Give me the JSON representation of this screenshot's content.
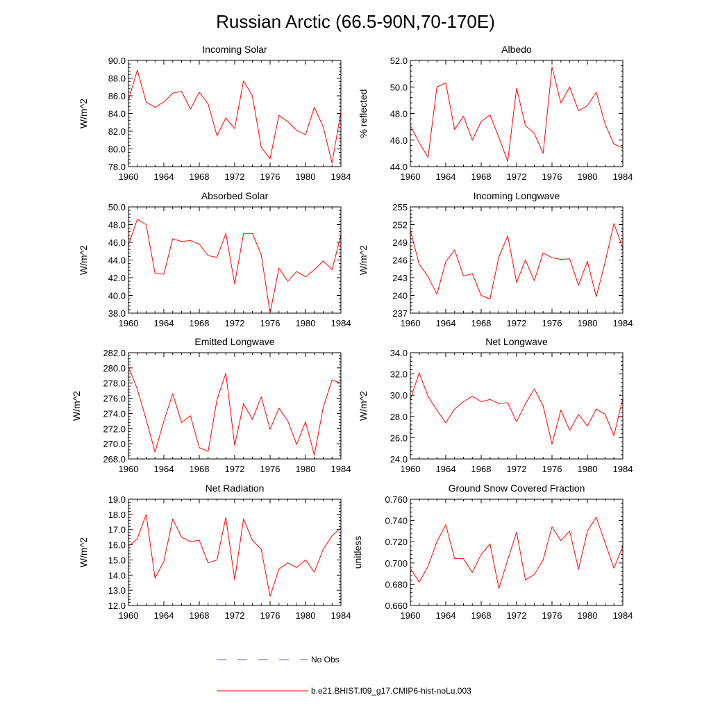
{
  "figure": {
    "title": "Russian Arctic (66.5-90N,70-170E)"
  },
  "legend": {
    "items": [
      {
        "label": "No Obs",
        "color": "#5a5adc",
        "dash": true
      },
      {
        "label": "b.e21.BHIST.f09_g17.CMIP6-hist-noLu.003",
        "color": "#ff0000",
        "dash": false
      }
    ]
  },
  "chart_data": [
    {
      "type": "line",
      "title": "Incoming Solar",
      "ylabel": "W/m^2",
      "xlim": [
        1960,
        1984
      ],
      "ylim": [
        78.0,
        90.0
      ],
      "xticks": [
        1960,
        1964,
        1968,
        1972,
        1976,
        1980,
        1984
      ],
      "xtick_labels": [
        "1960",
        "1964",
        "1968",
        "1972",
        "1976",
        "1980",
        "1984"
      ],
      "yticks": [
        78,
        80,
        82,
        84,
        86,
        88,
        90
      ],
      "ytick_labels": [
        "78.0",
        "80.0",
        "82.0",
        "84.0",
        "86.0",
        "88.0",
        "90.0"
      ],
      "grid": false,
      "x": [
        1960,
        1961,
        1962,
        1963,
        1964,
        1965,
        1966,
        1967,
        1968,
        1969,
        1970,
        1971,
        1972,
        1973,
        1974,
        1975,
        1976,
        1977,
        1978,
        1979,
        1980,
        1981,
        1982,
        1983,
        1984
      ],
      "series": [
        {
          "color": "#ff0000",
          "values": [
            85.5,
            88.9,
            85.3,
            84.7,
            85.3,
            86.3,
            86.5,
            84.5,
            86.4,
            85.1,
            81.5,
            83.5,
            82.3,
            87.7,
            86.0,
            80.2,
            78.9,
            83.8,
            83.1,
            82.1,
            81.6,
            84.7,
            82.5,
            78.4,
            84.2
          ]
        }
      ]
    },
    {
      "type": "line",
      "title": "Albedo",
      "ylabel": "% reflected",
      "xlim": [
        1960,
        1984
      ],
      "ylim": [
        44.0,
        52.0
      ],
      "xticks": [
        1960,
        1964,
        1968,
        1972,
        1976,
        1980,
        1984
      ],
      "xtick_labels": [
        "1960",
        "1964",
        "1968",
        "1972",
        "1976",
        "1980",
        "1984"
      ],
      "yticks": [
        44,
        46,
        48,
        50,
        52
      ],
      "ytick_labels": [
        "44.0",
        "46.0",
        "48.0",
        "50.0",
        "52.0"
      ],
      "grid": false,
      "x": [
        1960,
        1961,
        1962,
        1963,
        1964,
        1965,
        1966,
        1967,
        1968,
        1969,
        1970,
        1971,
        1972,
        1973,
        1974,
        1975,
        1976,
        1977,
        1978,
        1979,
        1980,
        1981,
        1982,
        1983,
        1984
      ],
      "series": [
        {
          "color": "#ff0000",
          "values": [
            47.1,
            45.8,
            44.7,
            50.0,
            50.3,
            46.8,
            47.8,
            46.0,
            47.4,
            47.9,
            46.2,
            44.4,
            49.9,
            47.1,
            46.5,
            45.0,
            51.5,
            48.8,
            50.0,
            48.2,
            48.6,
            49.6,
            47.2,
            45.7,
            45.4
          ]
        }
      ]
    },
    {
      "type": "line",
      "title": "Absorbed Solar",
      "ylabel": "W/m^2",
      "xlim": [
        1960,
        1984
      ],
      "ylim": [
        38.0,
        50.0
      ],
      "xticks": [
        1960,
        1964,
        1968,
        1972,
        1976,
        1980,
        1984
      ],
      "xtick_labels": [
        "1960",
        "1964",
        "1968",
        "1972",
        "1976",
        "1980",
        "1984"
      ],
      "yticks": [
        38,
        40,
        42,
        44,
        46,
        48,
        50
      ],
      "ytick_labels": [
        "38.0",
        "40.0",
        "42.0",
        "44.0",
        "46.0",
        "48.0",
        "50.0"
      ],
      "grid": false,
      "x": [
        1960,
        1961,
        1962,
        1963,
        1964,
        1965,
        1966,
        1967,
        1968,
        1969,
        1970,
        1971,
        1972,
        1973,
        1974,
        1975,
        1976,
        1977,
        1978,
        1979,
        1980,
        1981,
        1982,
        1983,
        1984
      ],
      "series": [
        {
          "color": "#ff0000",
          "values": [
            45.7,
            48.6,
            48.0,
            42.5,
            42.4,
            46.4,
            46.1,
            46.2,
            45.8,
            44.5,
            44.3,
            47.0,
            41.3,
            47.0,
            47.0,
            44.6,
            38.0,
            43.1,
            41.6,
            42.7,
            42.1,
            42.9,
            43.9,
            42.9,
            46.8
          ]
        }
      ]
    },
    {
      "type": "line",
      "title": "Incoming Longwave",
      "ylabel": "W/m^2",
      "xlim": [
        1960,
        1984
      ],
      "ylim": [
        237,
        255
      ],
      "xticks": [
        1960,
        1964,
        1968,
        1972,
        1976,
        1980,
        1984
      ],
      "xtick_labels": [
        "1960",
        "1964",
        "1968",
        "1972",
        "1976",
        "1980",
        "1984"
      ],
      "yticks": [
        237,
        240,
        243,
        246,
        249,
        252,
        255
      ],
      "ytick_labels": [
        "237",
        "240",
        "243",
        "246",
        "249",
        "252",
        "255"
      ],
      "grid": false,
      "x": [
        1960,
        1961,
        1962,
        1963,
        1964,
        1965,
        1966,
        1967,
        1968,
        1969,
        1970,
        1971,
        1972,
        1973,
        1974,
        1975,
        1976,
        1977,
        1978,
        1979,
        1980,
        1981,
        1982,
        1983,
        1984
      ],
      "series": [
        {
          "color": "#ff0000",
          "values": [
            251.0,
            245.3,
            243.2,
            240.2,
            245.7,
            247.7,
            243.3,
            243.7,
            240.0,
            239.4,
            246.5,
            250.1,
            242.2,
            246.0,
            242.5,
            247.2,
            246.4,
            246.1,
            246.2,
            241.7,
            245.8,
            239.8,
            245.6,
            252.2,
            248.0
          ]
        }
      ]
    },
    {
      "type": "line",
      "title": "Emitted Longwave",
      "ylabel": "W/m^2",
      "xlim": [
        1960,
        1984
      ],
      "ylim": [
        268.0,
        282.0
      ],
      "xticks": [
        1960,
        1964,
        1968,
        1972,
        1976,
        1980,
        1984
      ],
      "xtick_labels": [
        "1960",
        "1964",
        "1968",
        "1972",
        "1976",
        "1980",
        "1984"
      ],
      "yticks": [
        268,
        270,
        272,
        274,
        276,
        278,
        280,
        282
      ],
      "ytick_labels": [
        "268.0",
        "270.0",
        "272.0",
        "274.0",
        "276.0",
        "278.0",
        "280.0",
        "282.0"
      ],
      "grid": false,
      "x": [
        1960,
        1961,
        1962,
        1963,
        1964,
        1965,
        1966,
        1967,
        1968,
        1969,
        1970,
        1971,
        1972,
        1973,
        1974,
        1975,
        1976,
        1977,
        1978,
        1979,
        1980,
        1981,
        1982,
        1983,
        1984
      ],
      "series": [
        {
          "color": "#ff0000",
          "values": [
            280.2,
            277.2,
            273.2,
            268.9,
            273.0,
            276.6,
            272.8,
            273.7,
            269.5,
            269.0,
            275.8,
            279.3,
            269.8,
            275.3,
            273.2,
            276.2,
            271.9,
            274.7,
            273.0,
            269.9,
            272.9,
            268.5,
            274.8,
            278.4,
            278.0
          ]
        }
      ]
    },
    {
      "type": "line",
      "title": "Net Longwave",
      "ylabel": "W/m^2",
      "xlim": [
        1960,
        1984
      ],
      "ylim": [
        24.0,
        34.0
      ],
      "xticks": [
        1960,
        1964,
        1968,
        1972,
        1976,
        1980,
        1984
      ],
      "xtick_labels": [
        "1960",
        "1964",
        "1968",
        "1972",
        "1976",
        "1980",
        "1984"
      ],
      "yticks": [
        24,
        26,
        28,
        30,
        32,
        34
      ],
      "ytick_labels": [
        "24.0",
        "26.0",
        "28.0",
        "30.0",
        "32.0",
        "34.0"
      ],
      "grid": false,
      "x": [
        1960,
        1961,
        1962,
        1963,
        1964,
        1965,
        1966,
        1967,
        1968,
        1969,
        1970,
        1971,
        1972,
        1973,
        1974,
        1975,
        1976,
        1977,
        1978,
        1979,
        1980,
        1981,
        1982,
        1983,
        1984
      ],
      "series": [
        {
          "color": "#ff0000",
          "values": [
            29.6,
            32.1,
            29.9,
            28.6,
            27.4,
            28.7,
            29.4,
            29.9,
            29.4,
            29.6,
            29.2,
            29.3,
            27.5,
            29.2,
            30.6,
            29.0,
            25.4,
            28.6,
            26.7,
            28.2,
            27.1,
            28.7,
            28.2,
            26.2,
            29.7
          ]
        }
      ]
    },
    {
      "type": "line",
      "title": "Net Radiation",
      "ylabel": "W/m^2",
      "xlim": [
        1960,
        1984
      ],
      "ylim": [
        12.0,
        19.0
      ],
      "xticks": [
        1960,
        1964,
        1968,
        1972,
        1976,
        1980,
        1984
      ],
      "xtick_labels": [
        "1960",
        "1964",
        "1968",
        "1972",
        "1976",
        "1980",
        "1984"
      ],
      "yticks": [
        12,
        13,
        14,
        15,
        16,
        17,
        18,
        19
      ],
      "ytick_labels": [
        "12.0",
        "13.0",
        "14.0",
        "15.0",
        "16.0",
        "17.0",
        "18.0",
        "19.0"
      ],
      "grid": false,
      "x": [
        1960,
        1961,
        1962,
        1963,
        1964,
        1965,
        1966,
        1967,
        1968,
        1969,
        1970,
        1971,
        1972,
        1973,
        1974,
        1975,
        1976,
        1977,
        1978,
        1979,
        1980,
        1981,
        1982,
        1983,
        1984
      ],
      "series": [
        {
          "color": "#ff0000",
          "values": [
            15.9,
            16.4,
            18.0,
            13.8,
            14.9,
            17.7,
            16.5,
            16.2,
            16.3,
            14.8,
            15.0,
            17.8,
            13.7,
            17.7,
            16.3,
            15.7,
            12.6,
            14.4,
            14.8,
            14.5,
            15.0,
            14.2,
            15.7,
            16.6,
            17.1
          ]
        }
      ]
    },
    {
      "type": "line",
      "title": "Ground Snow Covered Fraction",
      "ylabel": "unitless",
      "xlim": [
        1960,
        1984
      ],
      "ylim": [
        0.66,
        0.76
      ],
      "xticks": [
        1960,
        1964,
        1968,
        1972,
        1976,
        1980,
        1984
      ],
      "xtick_labels": [
        "1960",
        "1964",
        "1968",
        "1972",
        "1976",
        "1980",
        "1984"
      ],
      "yticks": [
        0.66,
        0.68,
        0.7,
        0.72,
        0.74,
        0.76
      ],
      "ytick_labels": [
        "0.660",
        "0.680",
        "0.700",
        "0.720",
        "0.740",
        "0.760"
      ],
      "grid": false,
      "x": [
        1960,
        1961,
        1962,
        1963,
        1964,
        1965,
        1966,
        1967,
        1968,
        1969,
        1970,
        1971,
        1972,
        1973,
        1974,
        1975,
        1976,
        1977,
        1978,
        1979,
        1980,
        1981,
        1982,
        1983,
        1984
      ],
      "series": [
        {
          "color": "#ff0000",
          "values": [
            0.695,
            0.682,
            0.697,
            0.72,
            0.736,
            0.704,
            0.704,
            0.691,
            0.708,
            0.718,
            0.676,
            0.703,
            0.729,
            0.684,
            0.689,
            0.703,
            0.734,
            0.721,
            0.73,
            0.694,
            0.73,
            0.743,
            0.719,
            0.695,
            0.716
          ]
        }
      ]
    }
  ]
}
